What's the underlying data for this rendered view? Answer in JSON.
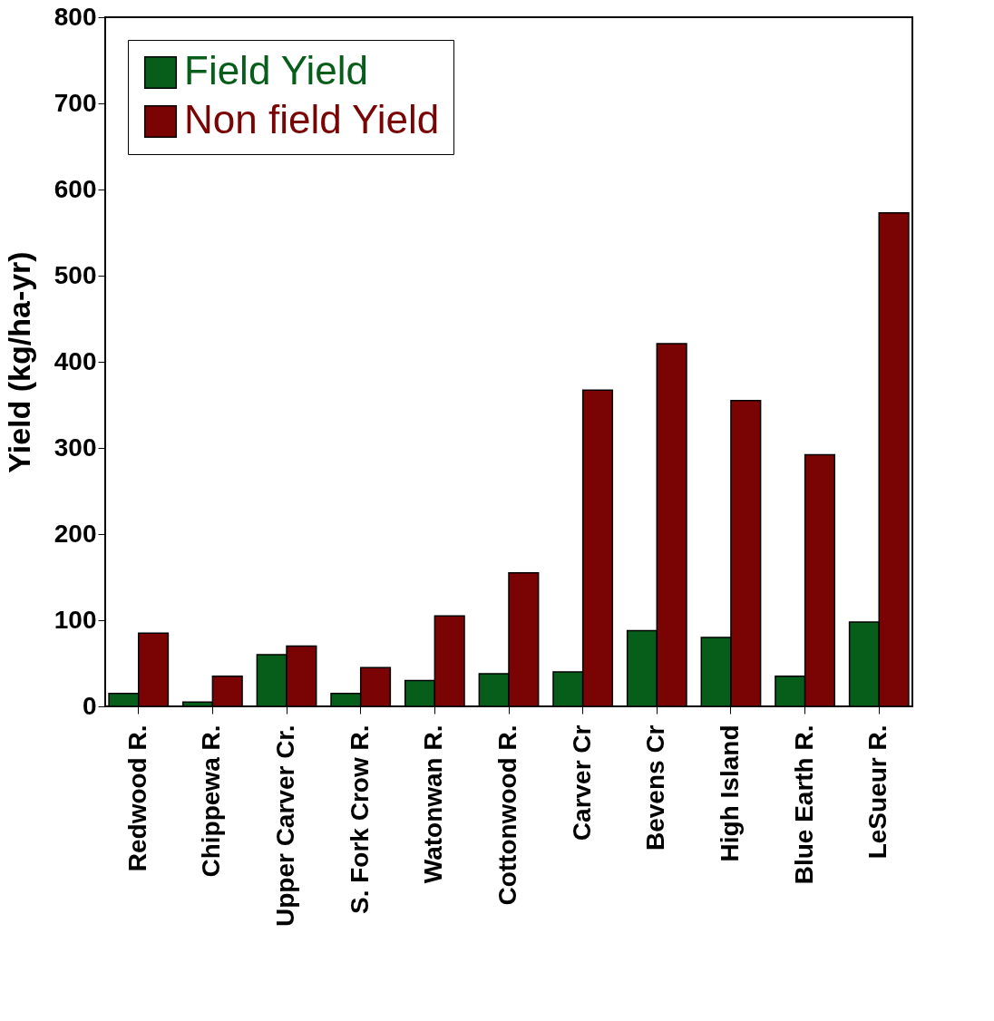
{
  "chart_data": {
    "type": "bar",
    "ylabel": "Yield (kg/ha-yr)",
    "categories": [
      "Redwood R.",
      "Chippewa R.",
      "Upper Carver Cr.",
      "S. Fork Crow R.",
      "Watonwan R.",
      "Cottonwood R.",
      "Carver Cr",
      "Bevens Cr",
      "High Island",
      "Blue Earth R.",
      "LeSueur R."
    ],
    "series": [
      {
        "name": "Field Yield",
        "color": "#075e1a",
        "values": [
          15,
          5,
          60,
          15,
          30,
          38,
          40,
          88,
          80,
          35,
          98
        ]
      },
      {
        "name": "Non field Yield",
        "color": "#7a0404",
        "values": [
          85,
          35,
          70,
          45,
          105,
          155,
          367,
          421,
          355,
          292,
          573
        ]
      }
    ],
    "ylim": [
      0,
      800
    ],
    "yticks": [
      0,
      100,
      200,
      300,
      400,
      500,
      600,
      700,
      800
    ],
    "grid": false,
    "legend": "top left"
  }
}
